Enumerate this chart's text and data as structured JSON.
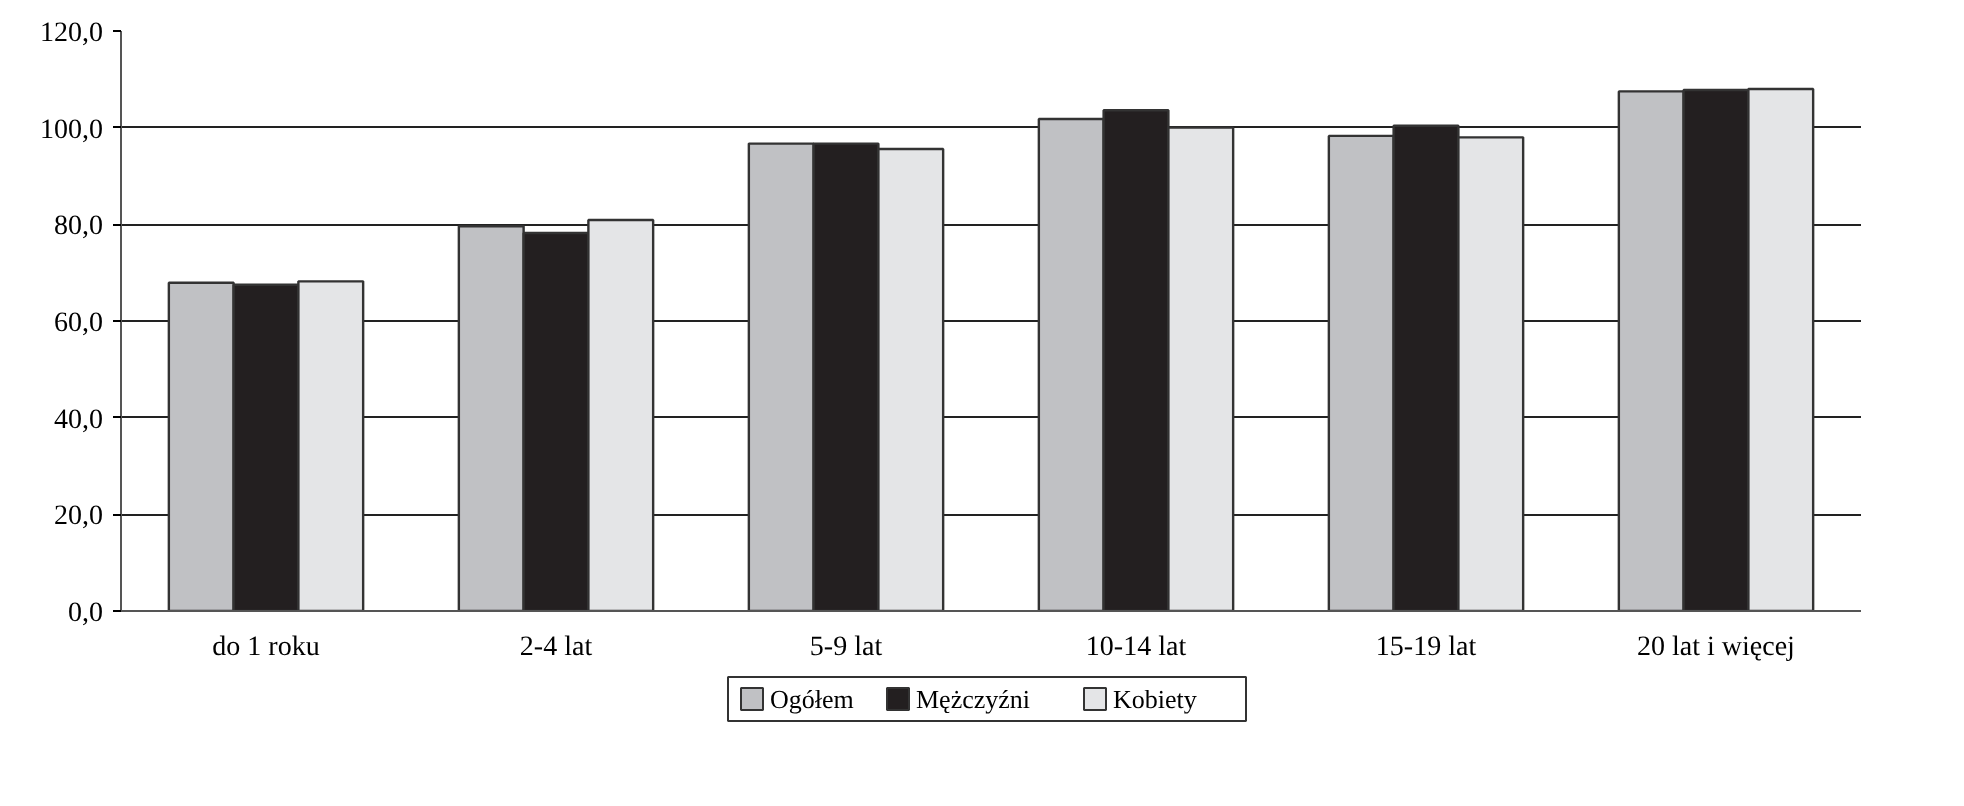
{
  "chart_data": {
    "type": "bar",
    "categories": [
      "do 1 roku",
      "2-4 lat",
      "5-9 lat",
      "10-14 lat",
      "15-19 lat",
      "20 lat i więcej"
    ],
    "series": [
      {
        "name": "Ogółem",
        "color": "#c0c1c4",
        "values": [
          67.9,
          79.6,
          96.7,
          101.8,
          98.3,
          107.5
        ]
      },
      {
        "name": "Mężczyźni",
        "color": "#231f20",
        "values": [
          67.5,
          78.2,
          96.7,
          103.6,
          100.4,
          107.8
        ]
      },
      {
        "name": "Kobiety",
        "color": "#e4e5e7",
        "values": [
          68.2,
          80.9,
          95.6,
          100.0,
          98.0,
          108.0
        ]
      }
    ],
    "ylim": [
      0,
      120
    ],
    "yticks": [
      {
        "value": 0,
        "label": "0,0"
      },
      {
        "value": 20,
        "label": "20,0"
      },
      {
        "value": 40,
        "label": "40,0"
      },
      {
        "value": 60,
        "label": "60,0"
      },
      {
        "value": 80,
        "label": "80,0"
      },
      {
        "value": 100,
        "label": "100,0"
      },
      {
        "value": 120,
        "label": "120,0"
      }
    ],
    "grid": "y",
    "legend": "bottom"
  }
}
